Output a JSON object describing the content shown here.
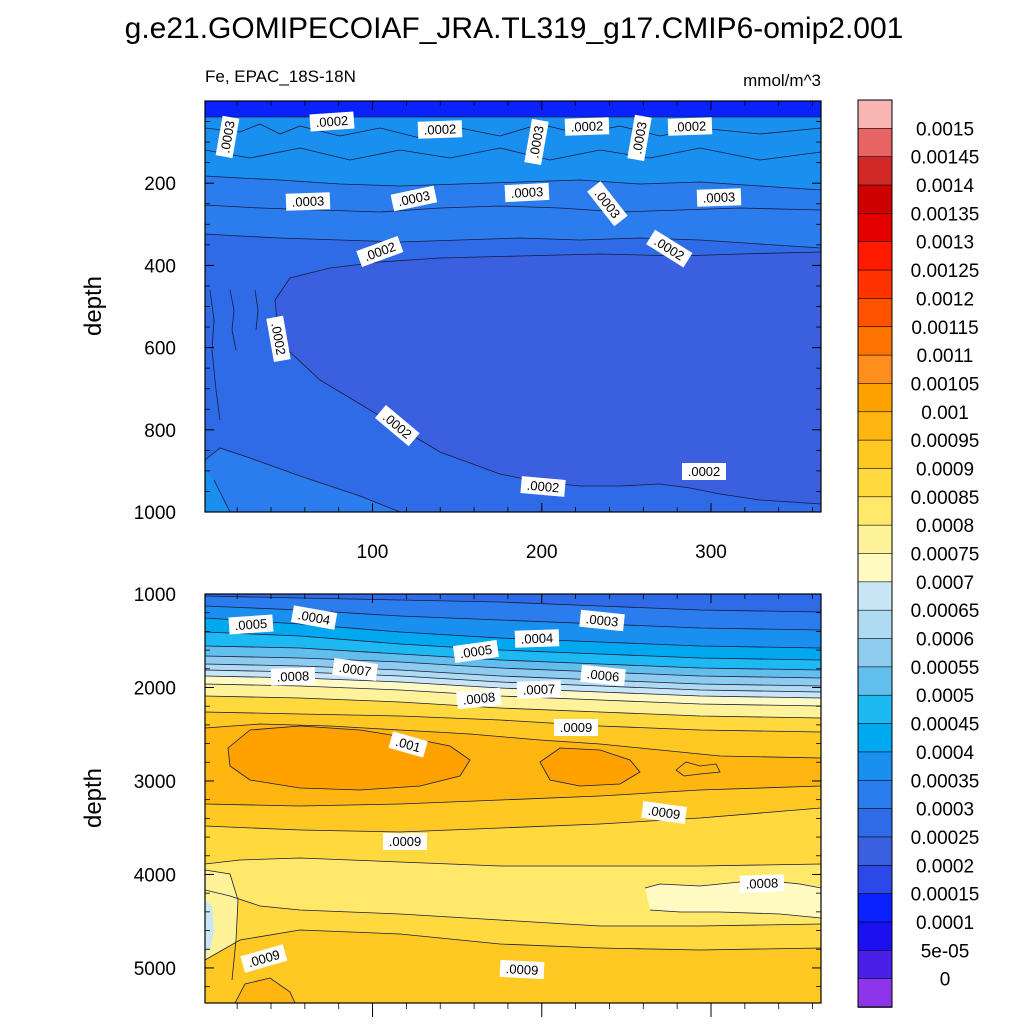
{
  "chart_data": {
    "type": "contour",
    "title": "g.e21.GOMIPECOIAF_JRA.TL319_g17.CMIP6-omip2.001",
    "subtitle_left": "Fe, EPAC_18S-18N",
    "units": "mmol/m^3",
    "colorbar": {
      "levels": [
        "0.0015",
        "0.00145",
        "0.0014",
        "0.00135",
        "0.0013",
        "0.00125",
        "0.0012",
        "0.00115",
        "0.0011",
        "0.00105",
        "0.001",
        "0.00095",
        "0.0009",
        "0.00085",
        "0.0008",
        "0.00075",
        "0.0007",
        "0.00065",
        "0.0006",
        "0.00055",
        "0.0005",
        "0.00045",
        "0.0004",
        "0.00035",
        "0.0003",
        "0.00025",
        "0.0002",
        "0.00015",
        "0.0001",
        "5e-05",
        "0"
      ],
      "colors": [
        "#F9B4B4",
        "#E86464",
        "#D12828",
        "#CE0000",
        "#E50000",
        "#FF1A00",
        "#FF3300",
        "#FF5200",
        "#FF7400",
        "#FF8E1C",
        "#FFA200",
        "#FFB611",
        "#FFC823",
        "#FFD93E",
        "#FFE86A",
        "#FFF39A",
        "#FFFAC2",
        "#C8E6F5",
        "#AEDAF2",
        "#8DCCEE",
        "#62BEEC",
        "#1DB9F2",
        "#00A8F0",
        "#1990F0",
        "#2B7CEC",
        "#2F6BE6",
        "#3A60DF",
        "#2B48E8",
        "#0A22FF",
        "#1A10F0",
        "#4A1FE8",
        "#8E35EB"
      ]
    },
    "panels": [
      {
        "name": "upper",
        "x_range": [
          1,
          365
        ],
        "y_range": [
          0,
          1000
        ],
        "ylabel": "depth",
        "xticks": [
          "100",
          "200",
          "300"
        ],
        "yticks": [
          "200",
          "400",
          "600",
          "800",
          "1000"
        ],
        "contour_labels": [
          ".0003",
          ".0002",
          ".0002",
          ".0003",
          ".0002",
          ".0003",
          ".0002",
          ".0003",
          ".0003",
          ".0003",
          ".0003",
          ".0003",
          ".0002",
          ".0002",
          ".0002",
          ".0002",
          ".0002",
          ".0002"
        ]
      },
      {
        "name": "lower",
        "x_range": [
          1,
          365
        ],
        "y_range": [
          1000,
          5375
        ],
        "ylabel": "depth",
        "yticks": [
          "1000",
          "2000",
          "3000",
          "4000",
          "5000"
        ],
        "contour_labels": [
          ".0005",
          ".0004",
          ".0003",
          ".0005",
          ".0004",
          ".0008",
          ".0007",
          ".0006",
          ".0008",
          ".0007",
          ".0009",
          ".001",
          ".0009",
          ".0009",
          ".0008",
          ".0009",
          ".0009"
        ]
      }
    ]
  }
}
